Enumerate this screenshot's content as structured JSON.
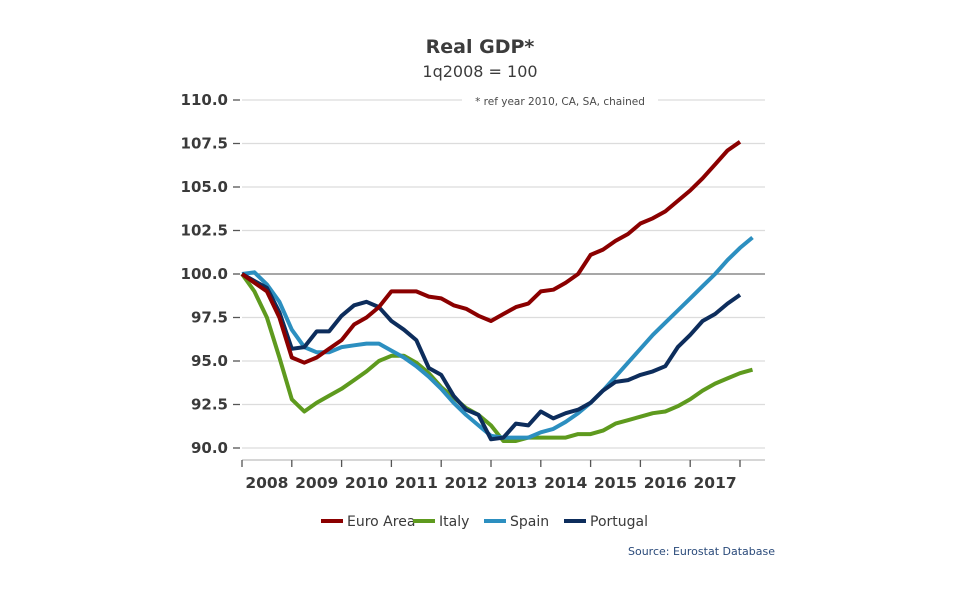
{
  "chart_data": {
    "type": "line",
    "title": "Real GDP*",
    "subtitle": "1q2008 = 100",
    "note": "* ref year 2010, CA, SA, chained",
    "source": "Source: Eurostat Database",
    "xlabel": "",
    "ylabel": "",
    "ylim": [
      90.0,
      110.0
    ],
    "yticks": [
      "110.0",
      "107.5",
      "105.0",
      "102.5",
      "100.0",
      "97.5",
      "95.0",
      "92.5",
      "90.0"
    ],
    "ytick_values": [
      110.0,
      107.5,
      105.0,
      102.5,
      100.0,
      97.5,
      95.0,
      92.5,
      90.0
    ],
    "xticks": [
      "2008",
      "2009",
      "2010",
      "2011",
      "2012",
      "2013",
      "2014",
      "2015",
      "2016",
      "2017"
    ],
    "x_start": "2008Q1",
    "x_unit": "quarter",
    "reference_line": 100.0,
    "grid": true,
    "legend_position": "bottom",
    "series": [
      {
        "name": "Euro Area",
        "color": "#8b0000",
        "values": [
          100.0,
          99.5,
          99.0,
          97.5,
          95.2,
          94.9,
          95.2,
          95.7,
          96.2,
          97.1,
          97.5,
          98.1,
          99.0,
          99.0,
          99.0,
          98.7,
          98.6,
          98.2,
          98.0,
          97.6,
          97.3,
          97.7,
          98.1,
          98.3,
          99.0,
          99.1,
          99.5,
          100.0,
          101.1,
          101.4,
          101.9,
          102.3,
          102.9,
          103.2,
          103.6,
          104.2,
          104.8,
          105.5,
          106.3,
          107.1,
          107.6
        ]
      },
      {
        "name": "Italy",
        "color": "#5e9a1e",
        "values": [
          100.0,
          99.0,
          97.5,
          95.2,
          92.8,
          92.1,
          92.6,
          93.0,
          93.4,
          93.9,
          94.4,
          95.0,
          95.3,
          95.3,
          94.9,
          94.3,
          93.5,
          92.9,
          92.3,
          91.9,
          91.3,
          90.4,
          90.4,
          90.6,
          90.6,
          90.6,
          90.6,
          90.8,
          90.8,
          91.0,
          91.4,
          91.6,
          91.8,
          92.0,
          92.1,
          92.4,
          92.8,
          93.3,
          93.7,
          94.0,
          94.3,
          94.5
        ]
      },
      {
        "name": "Spain",
        "color": "#2c8fc0",
        "values": [
          100.0,
          100.1,
          99.4,
          98.4,
          96.8,
          95.8,
          95.5,
          95.5,
          95.8,
          95.9,
          96.0,
          96.0,
          95.6,
          95.2,
          94.7,
          94.1,
          93.4,
          92.6,
          91.9,
          91.3,
          90.7,
          90.6,
          90.6,
          90.6,
          90.9,
          91.1,
          91.5,
          92.0,
          92.6,
          93.3,
          94.1,
          94.9,
          95.7,
          96.5,
          97.2,
          97.9,
          98.6,
          99.3,
          100.0,
          100.8,
          101.5,
          102.1
        ]
      },
      {
        "name": "Portugal",
        "color": "#0d2d5c",
        "values": [
          100.0,
          99.6,
          99.2,
          97.8,
          95.7,
          95.8,
          96.7,
          96.7,
          97.6,
          98.2,
          98.4,
          98.1,
          97.3,
          96.8,
          96.2,
          94.6,
          94.2,
          93.0,
          92.2,
          91.9,
          90.5,
          90.6,
          91.4,
          91.3,
          92.1,
          91.7,
          92.0,
          92.2,
          92.6,
          93.3,
          93.8,
          93.9,
          94.2,
          94.4,
          94.7,
          95.8,
          96.5,
          97.3,
          97.7,
          98.3,
          98.8
        ]
      }
    ]
  }
}
